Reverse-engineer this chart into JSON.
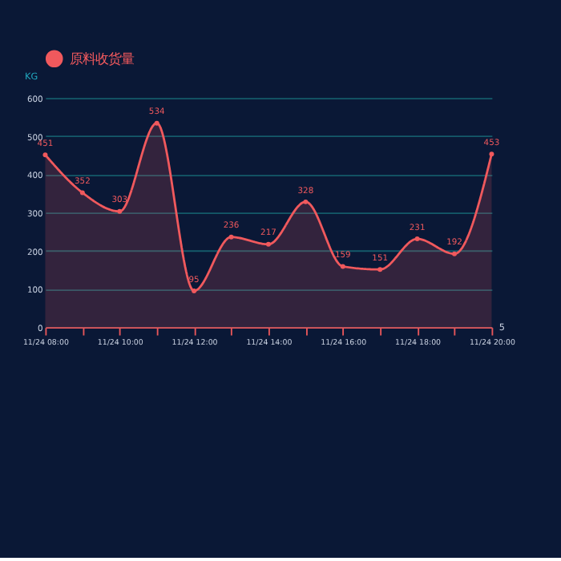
{
  "chart_data": {
    "type": "area",
    "ylabel": "KG",
    "categories": [
      "11/24 08:00",
      null,
      "11/24 10:00",
      null,
      "11/24 12:00",
      null,
      "11/24 14:00",
      null,
      "11/24 16:00",
      null,
      "11/24 18:00",
      null,
      "11/24 20:00"
    ],
    "series": [
      {
        "name": "原料收货量",
        "color": "#f0595d",
        "values": [
          451,
          352,
          303,
          534,
          95,
          236,
          217,
          328,
          159,
          151,
          231,
          192,
          453
        ]
      }
    ],
    "ylim": [
      0,
      600
    ],
    "yticks": [
      0,
      100,
      200,
      300,
      400,
      500,
      600
    ],
    "annotations": [
      "5"
    ],
    "grid": "y",
    "legend": "top",
    "marker": "circle",
    "line_style": "solid",
    "data_labels": true
  }
}
